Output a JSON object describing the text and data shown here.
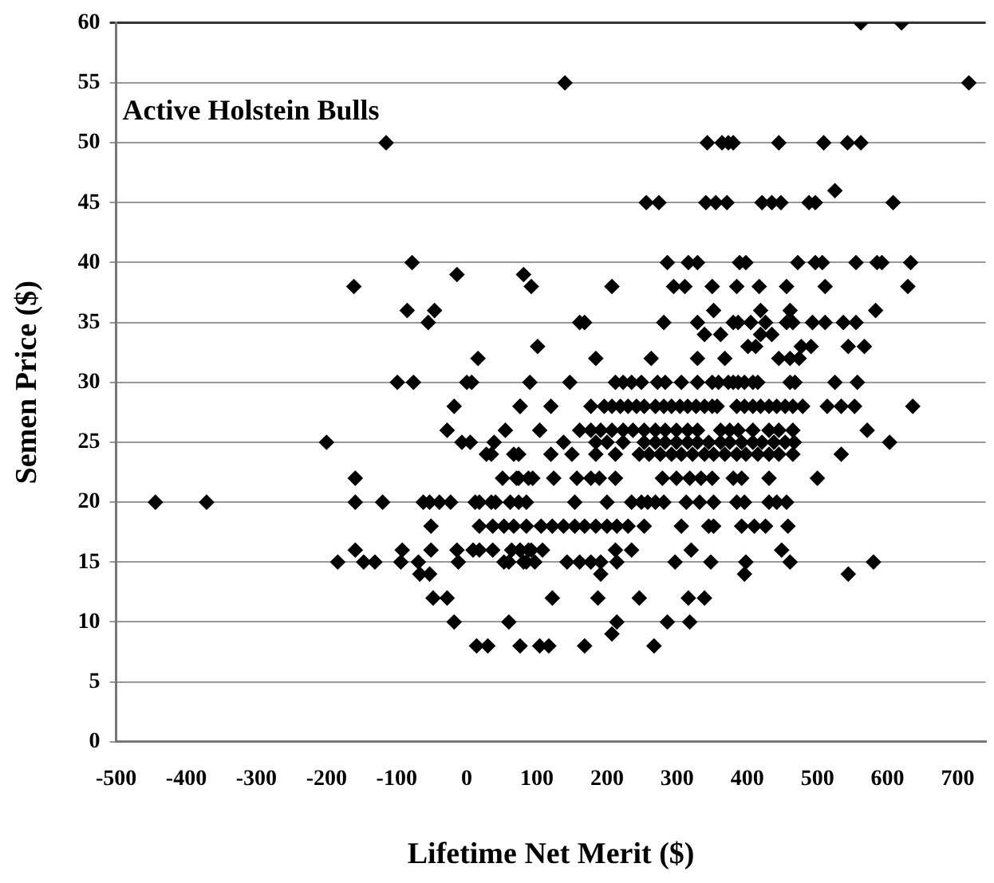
{
  "chart_data": {
    "type": "scatter",
    "title": "Active Holstein Bulls",
    "xlabel": "Lifetime Net Merit ($)",
    "ylabel": "Semen Price ($)",
    "xlim": [
      -500,
      740
    ],
    "xticks": [
      -500,
      -400,
      -300,
      -200,
      -100,
      0,
      100,
      200,
      300,
      400,
      500,
      600,
      700
    ],
    "ylim": [
      0,
      60
    ],
    "yticks": [
      0,
      5,
      10,
      15,
      20,
      25,
      30,
      35,
      40,
      45,
      50,
      55,
      60
    ],
    "grid": "y",
    "legend": false,
    "marker": "diamond",
    "series": [
      {
        "color": "#000000",
        "x": [
          -115,
          -161,
          -78,
          -85,
          -55,
          -46,
          -14,
          16,
          -99,
          -76,
          0,
          7,
          81,
          92,
          562,
          620,
          140,
          716,
          343,
          364,
          373,
          380,
          445,
          509,
          543,
          562,
          525,
          256,
          274,
          341,
          355,
          371,
          421,
          435,
          448,
          488,
          497,
          608,
          286,
          316,
          329,
          389,
          398,
          472,
          497,
          507,
          555,
          585,
          592,
          633,
          207,
          295,
          311,
          350,
          385,
          417,
          456,
          511,
          629,
          352,
          419,
          461,
          583,
          161,
          168,
          281,
          329,
          380,
          387,
          405,
          426,
          456,
          465,
          493,
          511,
          537,
          555,
          339,
          362,
          419,
          435,
          101,
          401,
          412,
          477,
          491,
          544,
          567,
          184,
          263,
          329,
          368,
          445,
          461,
          474,
          90,
          147,
          212,
          223,
          235,
          249,
          272,
          283,
          306,
          329,
          350,
          359,
          373,
          380,
          387,
          396,
          408,
          415,
          461,
          468,
          525,
          557,
          -18,
          76,
          -28,
          55,
          -200,
          -7,
          5,
          39,
          28,
          35,
          67,
          -159,
          51,
          71,
          88,
          -444,
          -371,
          -159,
          -120,
          -62,
          -53,
          -39,
          -23,
          12,
          18,
          35,
          41,
          62,
          85,
          -51,
          18,
          37,
          53,
          67,
          -159,
          -92,
          -51,
          -14,
          9,
          18,
          37,
          64,
          76,
          88,
          -184,
          -147,
          -131,
          -94,
          -69,
          -12,
          53,
          60,
          85,
          -67,
          -53,
          -48,
          -28,
          -18,
          60,
          14,
          30,
          76,
          120,
          177,
          196,
          207,
          219,
          230,
          242,
          253,
          269,
          281,
          292,
          304,
          315,
          327,
          339,
          350,
          357,
          385,
          396,
          408,
          419,
          431,
          442,
          454,
          465,
          479,
          514,
          534,
          553,
          636,
          104,
          161,
          177,
          191,
          207,
          223,
          237,
          253,
          269,
          283,
          299,
          315,
          329,
          362,
          375,
          387,
          408,
          431,
          445,
          465,
          571,
          138,
          184,
          200,
          223,
          253,
          269,
          283,
          299,
          315,
          329,
          345,
          362,
          375,
          392,
          408,
          421,
          438,
          454,
          467,
          603,
          74,
          120,
          150,
          184,
          212,
          246,
          260,
          276,
          292,
          306,
          322,
          339,
          352,
          368,
          385,
          398,
          415,
          431,
          445,
          465,
          534,
          74,
          94,
          124,
          157,
          177,
          189,
          212,
          279,
          299,
          318,
          334,
          350,
          380,
          392,
          431,
          500,
          74,
          154,
          200,
          235,
          249,
          258,
          269,
          281,
          313,
          332,
          352,
          385,
          396,
          431,
          442,
          456,
          85,
          106,
          122,
          138,
          154,
          168,
          184,
          200,
          214,
          230,
          253,
          306,
          345,
          352,
          392,
          410,
          426,
          458,
          76,
          92,
          108,
          212,
          235,
          320,
          449,
          81,
          97,
          143,
          161,
          177,
          191,
          214,
          297,
          348,
          398,
          461,
          580,
          191,
          396,
          544,
          122,
          187,
          246,
          316,
          339,
          214,
          286,
          318,
          207,
          76,
          104,
          117,
          168,
          267
        ],
        "values": [
          50,
          38,
          40,
          36,
          35,
          36,
          39,
          32,
          30,
          30,
          30,
          30,
          39,
          38,
          60,
          60,
          55,
          55,
          50,
          50,
          50,
          50,
          50,
          50,
          50,
          50,
          46,
          45,
          45,
          45,
          45,
          45,
          45,
          45,
          45,
          45,
          45,
          45,
          40,
          40,
          40,
          40,
          40,
          40,
          40,
          40,
          40,
          40,
          40,
          40,
          38,
          38,
          38,
          38,
          38,
          38,
          38,
          38,
          38,
          36,
          36,
          36,
          36,
          35,
          35,
          35,
          35,
          35,
          35,
          35,
          35,
          35,
          35,
          35,
          35,
          35,
          35,
          34,
          34,
          34,
          34,
          33,
          33,
          33,
          33,
          33,
          33,
          33,
          32,
          32,
          32,
          32,
          32,
          32,
          32,
          30,
          30,
          30,
          30,
          30,
          30,
          30,
          30,
          30,
          30,
          30,
          30,
          30,
          30,
          30,
          30,
          30,
          30,
          30,
          30,
          30,
          30,
          28,
          28,
          26,
          26,
          25,
          25,
          25,
          25,
          24,
          24,
          24,
          22,
          22,
          22,
          22,
          20,
          20,
          20,
          20,
          20,
          20,
          20,
          20,
          20,
          20,
          20,
          20,
          20,
          20,
          18,
          18,
          18,
          18,
          18,
          16,
          16,
          16,
          16,
          16,
          16,
          16,
          16,
          16,
          16,
          15,
          15,
          15,
          15,
          15,
          15,
          15,
          15,
          15,
          14,
          14,
          12,
          12,
          10,
          10,
          8,
          8,
          28,
          28,
          28,
          28,
          28,
          28,
          28,
          28,
          28,
          28,
          28,
          28,
          28,
          28,
          28,
          28,
          28,
          28,
          28,
          28,
          28,
          28,
          28,
          28,
          28,
          28,
          28,
          28,
          28,
          28,
          28,
          26,
          26,
          26,
          26,
          26,
          26,
          26,
          26,
          26,
          26,
          26,
          26,
          26,
          26,
          26,
          26,
          26,
          26,
          26,
          26,
          26,
          25,
          25,
          25,
          25,
          25,
          25,
          25,
          25,
          25,
          25,
          25,
          25,
          25,
          25,
          25,
          25,
          25,
          25,
          25,
          25,
          24,
          24,
          24,
          24,
          24,
          24,
          24,
          24,
          24,
          24,
          24,
          24,
          24,
          24,
          24,
          24,
          24,
          24,
          24,
          24,
          24,
          22,
          22,
          22,
          22,
          22,
          22,
          22,
          22,
          22,
          22,
          22,
          22,
          22,
          22,
          22,
          22,
          20,
          20,
          20,
          20,
          20,
          20,
          20,
          20,
          20,
          20,
          20,
          20,
          20,
          20,
          20,
          20,
          18,
          18,
          18,
          18,
          18,
          18,
          18,
          18,
          18,
          18,
          18,
          18,
          18,
          18,
          18,
          18,
          18,
          18,
          16,
          16,
          16,
          16,
          16,
          16,
          16,
          15,
          15,
          15,
          15,
          15,
          15,
          15,
          15,
          15,
          15,
          15,
          15,
          14,
          14,
          14,
          12,
          12,
          12,
          12,
          12,
          10,
          10,
          10,
          9,
          8,
          8,
          8,
          8,
          8
        ]
      }
    ]
  }
}
